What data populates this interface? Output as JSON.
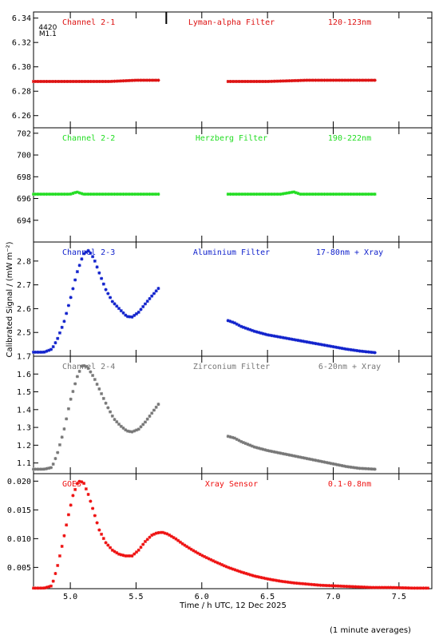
{
  "chart_data": {
    "type": "scatter",
    "xlabel": "Time / h UTC, 12 Dec 2025",
    "ylabel": "Calibrated Signal / (mW m⁻²)",
    "footnote": "(1 minute averages)",
    "xlim": [
      4.72,
      7.75
    ],
    "xticks": [
      "5.0",
      "5.5",
      "6.0",
      "6.5",
      "7.0",
      "7.5"
    ],
    "xtick_values": [
      5.0,
      5.5,
      6.0,
      6.5,
      7.0,
      7.5
    ],
    "grid": false,
    "marker": {
      "labels": [
        "4420",
        "M1.1"
      ],
      "x": 5.46,
      "tick_x": 5.73
    },
    "panels": [
      {
        "channel": "Channel 2-1",
        "filter": "Lyman-alpha Filter",
        "band": "120-123nm",
        "color": "#dd1111",
        "ylim": [
          6.25,
          6.345
        ],
        "yticks": [
          "6.26",
          "6.28",
          "6.30",
          "6.32",
          "6.34"
        ],
        "ytick_values": [
          6.26,
          6.28,
          6.3,
          6.32,
          6.34
        ],
        "segments": [
          {
            "x": [
              4.72,
              5.0,
              5.3,
              5.5,
              5.67
            ],
            "y": [
              6.288,
              6.288,
              6.288,
              6.289,
              6.289
            ]
          },
          {
            "x": [
              6.2,
              6.5,
              6.8,
              7.1,
              7.32
            ],
            "y": [
              6.288,
              6.288,
              6.289,
              6.289,
              6.289
            ]
          }
        ]
      },
      {
        "channel": "Channel 2-2",
        "filter": "Herzberg Filter",
        "band": "190-222nm",
        "color": "#22dd22",
        "ylim": [
          692.0,
          702.5
        ],
        "yticks": [
          "694",
          "696",
          "698",
          "700",
          "702"
        ],
        "ytick_values": [
          694,
          696,
          698,
          700,
          702
        ],
        "segments": [
          {
            "x": [
              4.72,
              5.0,
              5.05,
              5.1,
              5.3,
              5.67
            ],
            "y": [
              696.4,
              696.4,
              696.6,
              696.4,
              696.4,
              696.4
            ]
          },
          {
            "x": [
              6.2,
              6.6,
              6.7,
              6.75,
              7.0,
              7.32
            ],
            "y": [
              696.4,
              696.4,
              696.6,
              696.4,
              696.4,
              696.4
            ]
          }
        ]
      },
      {
        "channel": "Channel 2-3",
        "filter": "Aluminium Filter",
        "band": "17-80nm + Xray",
        "color": "#1122cc",
        "ylim": [
          2.4,
          2.88
        ],
        "yticks": [
          "2.5",
          "2.6",
          "2.7",
          "2.8"
        ],
        "ytick_values": [
          2.5,
          2.6,
          2.7,
          2.8
        ],
        "segments": [
          {
            "x": [
              4.72,
              4.8,
              4.86,
              4.9,
              4.95,
              5.0,
              5.05,
              5.1,
              5.14,
              5.18,
              5.22,
              5.27,
              5.32,
              5.38,
              5.43,
              5.47,
              5.52,
              5.57,
              5.62,
              5.67
            ],
            "y": [
              2.417,
              2.417,
              2.43,
              2.47,
              2.54,
              2.64,
              2.75,
              2.83,
              2.845,
              2.81,
              2.75,
              2.68,
              2.63,
              2.595,
              2.567,
              2.565,
              2.585,
              2.62,
              2.653,
              2.685
            ]
          },
          {
            "x": [
              6.2,
              6.25,
              6.3,
              6.4,
              6.5,
              6.6,
              6.7,
              6.8,
              6.9,
              7.0,
              7.1,
              7.2,
              7.32
            ],
            "y": [
              2.55,
              2.54,
              2.525,
              2.505,
              2.49,
              2.48,
              2.47,
              2.46,
              2.45,
              2.44,
              2.43,
              2.422,
              2.415
            ]
          }
        ]
      },
      {
        "channel": "Channel 2-4",
        "filter": "Zirconium Filter",
        "band": "6-20nm + Xray",
        "color": "#777777",
        "ylim": [
          1.04,
          1.7
        ],
        "yticks": [
          "1.1",
          "1.2",
          "1.3",
          "1.4",
          "1.5",
          "1.6",
          "1.7"
        ],
        "ytick_values": [
          1.1,
          1.2,
          1.3,
          1.4,
          1.5,
          1.6,
          1.7
        ],
        "segments": [
          {
            "x": [
              4.72,
              4.8,
              4.86,
              4.9,
              4.95,
              5.0,
              5.05,
              5.09,
              5.13,
              5.18,
              5.23,
              5.28,
              5.33,
              5.38,
              5.43,
              5.47,
              5.52,
              5.57,
              5.62,
              5.67
            ],
            "y": [
              1.065,
              1.065,
              1.075,
              1.15,
              1.28,
              1.45,
              1.58,
              1.65,
              1.64,
              1.58,
              1.5,
              1.42,
              1.35,
              1.31,
              1.28,
              1.275,
              1.29,
              1.33,
              1.38,
              1.43
            ]
          },
          {
            "x": [
              6.2,
              6.25,
              6.3,
              6.4,
              6.5,
              6.6,
              6.7,
              6.8,
              6.9,
              7.0,
              7.1,
              7.2,
              7.32
            ],
            "y": [
              1.25,
              1.24,
              1.22,
              1.19,
              1.17,
              1.155,
              1.14,
              1.125,
              1.11,
              1.095,
              1.08,
              1.07,
              1.065
            ]
          }
        ]
      },
      {
        "channel": "GOES",
        "filter": "Xray Sensor",
        "band": "0.1-0.8nm",
        "color": "#ee1111",
        "ylim": [
          0.0013,
          0.0213
        ],
        "yticks": [
          "0.005",
          "0.010",
          "0.015",
          "0.020"
        ],
        "ytick_values": [
          0.005,
          0.01,
          0.015,
          0.02
        ],
        "segments": [
          {
            "x": [
              4.72,
              4.8,
              4.86,
              4.9,
              4.94,
              4.98,
              5.02,
              5.06,
              5.1,
              5.14,
              5.18,
              5.22,
              5.27,
              5.32,
              5.37,
              5.42,
              5.47,
              5.52,
              5.57,
              5.62,
              5.66,
              5.7,
              5.74,
              5.8,
              5.86,
              5.93,
              6.0,
              6.1,
              6.2,
              6.3,
              6.4,
              6.5,
              6.6,
              6.7,
              6.8,
              6.9,
              7.0,
              7.1,
              7.2,
              7.3,
              7.45,
              7.6,
              7.72
            ],
            "y": [
              0.0014,
              0.0014,
              0.0018,
              0.005,
              0.009,
              0.0135,
              0.0175,
              0.02,
              0.0198,
              0.0175,
              0.0145,
              0.0115,
              0.0093,
              0.008,
              0.0073,
              0.007,
              0.007,
              0.008,
              0.0095,
              0.0106,
              0.011,
              0.0111,
              0.0108,
              0.01,
              0.009,
              0.008,
              0.0071,
              0.006,
              0.005,
              0.0042,
              0.0035,
              0.003,
              0.0026,
              0.0023,
              0.0021,
              0.0019,
              0.0018,
              0.0017,
              0.0016,
              0.0015,
              0.0015,
              0.0014,
              0.0014
            ]
          }
        ]
      }
    ]
  }
}
